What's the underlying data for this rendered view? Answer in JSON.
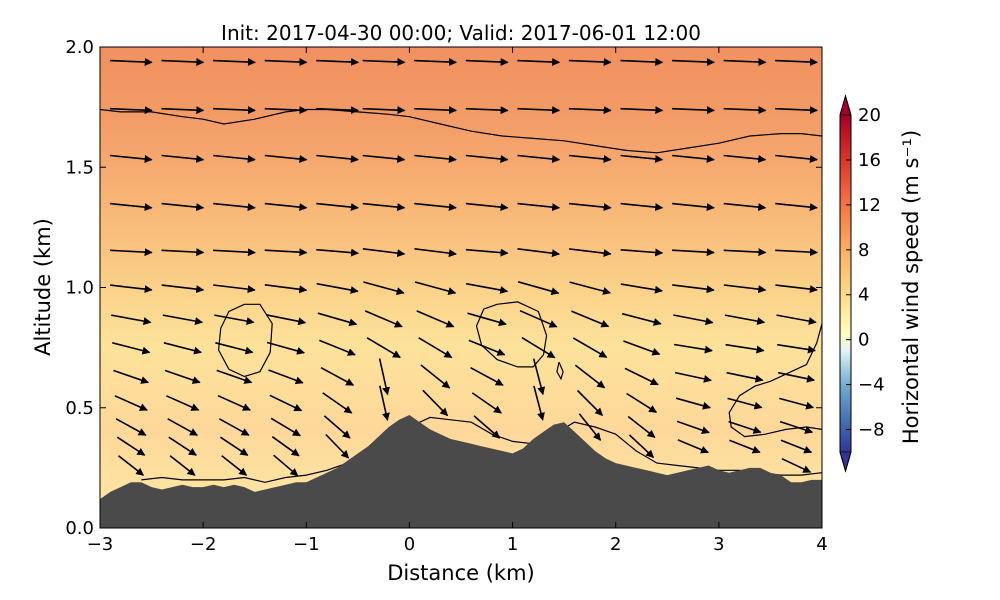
{
  "chart_data": {
    "type": "heatmap",
    "title": "Init: 2017-04-30 00:00; Valid: 2017-06-01 12:00",
    "xlabel": "Distance (km)",
    "ylabel": "Altitude (km)",
    "xlim": [
      -3,
      4
    ],
    "ylim": [
      0.0,
      2.0
    ],
    "x_ticks": [
      -3,
      -2,
      -1,
      0,
      1,
      2,
      3,
      4
    ],
    "x_tick_labels": [
      "−3",
      "−2",
      "−1",
      "0",
      "1",
      "2",
      "3",
      "4"
    ],
    "y_ticks": [
      0.0,
      0.5,
      1.0,
      1.5,
      2.0
    ],
    "y_tick_labels": [
      "0.0",
      "0.5",
      "1.0",
      "1.5",
      "2.0"
    ],
    "colorbar": {
      "label": "Horizontal wind speed (m s⁻¹)",
      "range": [
        -10,
        20
      ],
      "ticks": [
        -8,
        -4,
        0,
        4,
        8,
        12,
        16,
        20
      ],
      "tick_labels": [
        "−8",
        "−4",
        "0",
        "4",
        "8",
        "12",
        "16",
        "20"
      ],
      "extend": "both",
      "colormap": "RdYlBu_r"
    },
    "terrain": {
      "color": "#4a4a4a",
      "profile_x": [
        -3.0,
        -2.9,
        -2.8,
        -2.7,
        -2.6,
        -2.5,
        -2.4,
        -2.3,
        -2.2,
        -2.1,
        -2.0,
        -1.9,
        -1.8,
        -1.7,
        -1.6,
        -1.5,
        -1.4,
        -1.3,
        -1.2,
        -1.1,
        -1.0,
        -0.9,
        -0.8,
        -0.7,
        -0.6,
        -0.5,
        -0.4,
        -0.3,
        -0.2,
        -0.1,
        0.0,
        0.1,
        0.2,
        0.3,
        0.4,
        0.5,
        0.6,
        0.7,
        0.8,
        0.9,
        1.0,
        1.1,
        1.2,
        1.3,
        1.4,
        1.5,
        1.6,
        1.7,
        1.8,
        1.9,
        2.0,
        2.1,
        2.2,
        2.3,
        2.4,
        2.5,
        2.6,
        2.7,
        2.8,
        2.9,
        3.0,
        3.1,
        3.2,
        3.3,
        3.4,
        3.5,
        3.6,
        3.7,
        3.8,
        3.9,
        4.0
      ],
      "profile_z": [
        0.12,
        0.15,
        0.17,
        0.19,
        0.19,
        0.17,
        0.16,
        0.17,
        0.18,
        0.17,
        0.17,
        0.18,
        0.17,
        0.18,
        0.17,
        0.15,
        0.16,
        0.17,
        0.18,
        0.19,
        0.19,
        0.21,
        0.23,
        0.25,
        0.28,
        0.31,
        0.34,
        0.38,
        0.42,
        0.45,
        0.47,
        0.44,
        0.41,
        0.39,
        0.37,
        0.36,
        0.35,
        0.34,
        0.33,
        0.32,
        0.31,
        0.33,
        0.37,
        0.4,
        0.43,
        0.44,
        0.4,
        0.36,
        0.32,
        0.29,
        0.27,
        0.26,
        0.25,
        0.24,
        0.23,
        0.22,
        0.23,
        0.24,
        0.25,
        0.26,
        0.24,
        0.23,
        0.24,
        0.25,
        0.25,
        0.23,
        0.22,
        0.19,
        0.19,
        0.2,
        0.2
      ]
    },
    "contours": {
      "level": "0 m s⁻¹ (black lines)",
      "lines": [
        {
          "x": [
            -3.0,
            -2.8,
            -2.5,
            -2.2,
            -2.0,
            -1.8,
            -1.5,
            -1.2,
            -1.0,
            -0.8,
            -0.5,
            -0.2,
            0.0,
            0.3,
            0.6,
            0.9,
            1.2,
            1.5,
            1.8,
            2.1,
            2.4,
            2.7,
            3.0,
            3.3,
            3.6,
            3.8,
            4.0
          ],
          "y": [
            1.74,
            1.73,
            1.73,
            1.71,
            1.7,
            1.68,
            1.7,
            1.73,
            1.74,
            1.74,
            1.73,
            1.72,
            1.71,
            1.68,
            1.65,
            1.63,
            1.62,
            1.61,
            1.59,
            1.57,
            1.56,
            1.58,
            1.6,
            1.63,
            1.64,
            1.64,
            1.63
          ]
        },
        {
          "x": [
            -2.6,
            -2.4,
            -2.2,
            -2.0,
            -1.8,
            -1.6,
            -1.4,
            -1.2,
            -1.0,
            -0.8,
            -0.6,
            -0.4,
            -0.2,
            0.0,
            0.2,
            0.4,
            0.6,
            0.8,
            1.0,
            1.2,
            1.4,
            1.6,
            1.8,
            2.0,
            2.2,
            2.4,
            2.6,
            2.8,
            3.0,
            3.2,
            3.4,
            3.6,
            3.8,
            4.0
          ],
          "y": [
            0.2,
            0.21,
            0.2,
            0.2,
            0.2,
            0.21,
            0.19,
            0.21,
            0.22,
            0.24,
            0.27,
            0.31,
            0.36,
            0.42,
            0.46,
            0.45,
            0.44,
            0.39,
            0.36,
            0.35,
            0.39,
            0.44,
            0.42,
            0.39,
            0.32,
            0.27,
            0.26,
            0.25,
            0.24,
            0.24,
            0.23,
            0.22,
            0.22,
            0.23
          ]
        },
        {
          "x": [
            -1.6,
            -1.45,
            -1.33,
            -1.35,
            -1.45,
            -1.6,
            -1.75,
            -1.85,
            -1.83,
            -1.75,
            -1.6
          ],
          "y": [
            0.93,
            0.93,
            0.85,
            0.73,
            0.65,
            0.63,
            0.66,
            0.74,
            0.83,
            0.9,
            0.93
          ]
        },
        {
          "x": [
            0.85,
            1.05,
            1.25,
            1.33,
            1.3,
            1.2,
            1.05,
            0.85,
            0.7,
            0.65,
            0.72,
            0.85
          ],
          "y": [
            0.93,
            0.94,
            0.9,
            0.8,
            0.72,
            0.67,
            0.67,
            0.7,
            0.76,
            0.84,
            0.91,
            0.93
          ]
        },
        {
          "x": [
            1.45,
            1.49,
            1.47,
            1.43,
            1.45
          ],
          "y": [
            0.69,
            0.65,
            0.62,
            0.65,
            0.69
          ]
        },
        {
          "x": [
            4.0,
            3.95,
            3.85,
            3.7,
            3.5,
            3.35,
            3.2,
            3.1,
            3.12,
            3.25,
            3.45,
            3.65,
            3.85,
            4.0
          ],
          "y": [
            0.85,
            0.77,
            0.68,
            0.65,
            0.61,
            0.59,
            0.55,
            0.48,
            0.42,
            0.38,
            0.39,
            0.41,
            0.42,
            0.41
          ]
        }
      ]
    },
    "wind_vectors": {
      "color": "#000000",
      "columns_x": [
        -2.7,
        -2.2,
        -1.7,
        -1.2,
        -0.7,
        -0.25,
        0.25,
        0.75,
        1.25,
        1.75,
        2.25,
        2.75,
        3.25,
        3.75
      ],
      "levels_z": [
        1.94,
        1.74,
        1.54,
        1.34,
        1.15,
        1.0,
        0.87,
        0.75,
        0.63,
        0.52,
        0.42,
        0.34,
        0.26
      ],
      "description": "Arrows point mostly eastward aloft; upslope/downslope vertical motion near the terrain peaks."
    }
  }
}
